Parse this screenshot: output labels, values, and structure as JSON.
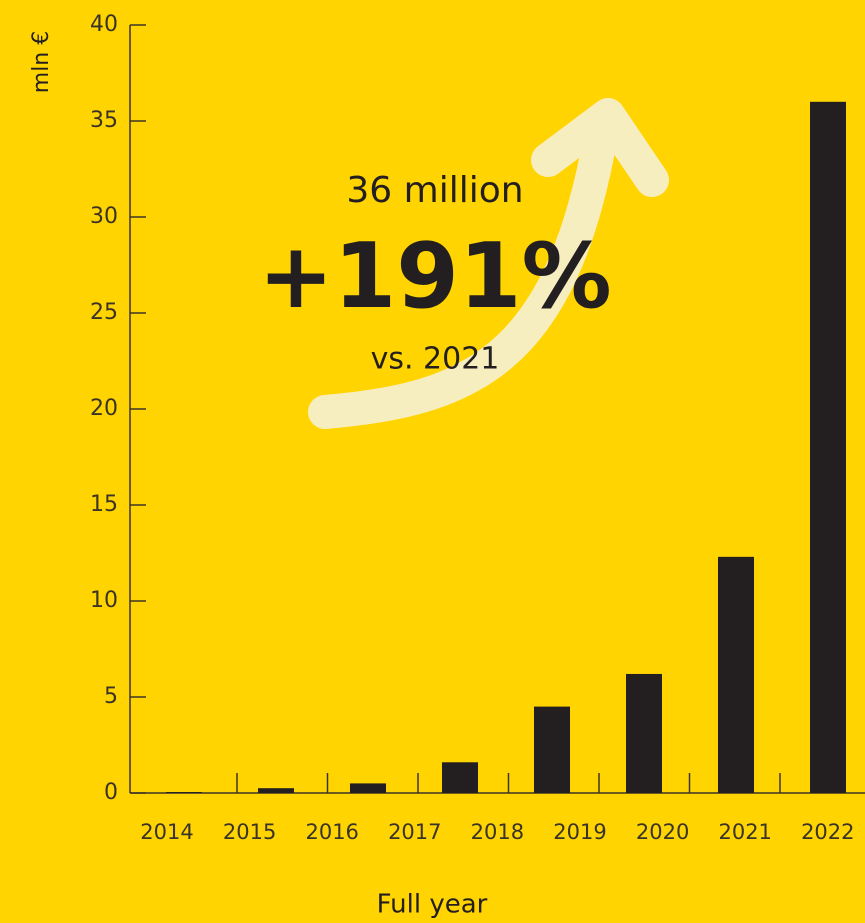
{
  "chart_data": {
    "type": "bar",
    "y_label": "mln €",
    "x_label": "Full year",
    "annotations": [
      "36 million",
      "+191%",
      "vs. 2021"
    ],
    "categories": [
      "2014",
      "2015",
      "2016",
      "2017",
      "2018",
      "2019",
      "2020",
      "2021",
      "2022"
    ],
    "values": [
      null,
      0.05,
      0.25,
      0.5,
      1.6,
      4.5,
      6.2,
      12.3,
      36
    ],
    "color": "#231f20",
    "ylim": [
      0,
      40
    ],
    "yticks": [
      0,
      5,
      10,
      15,
      20,
      25,
      30,
      35,
      40
    ]
  }
}
